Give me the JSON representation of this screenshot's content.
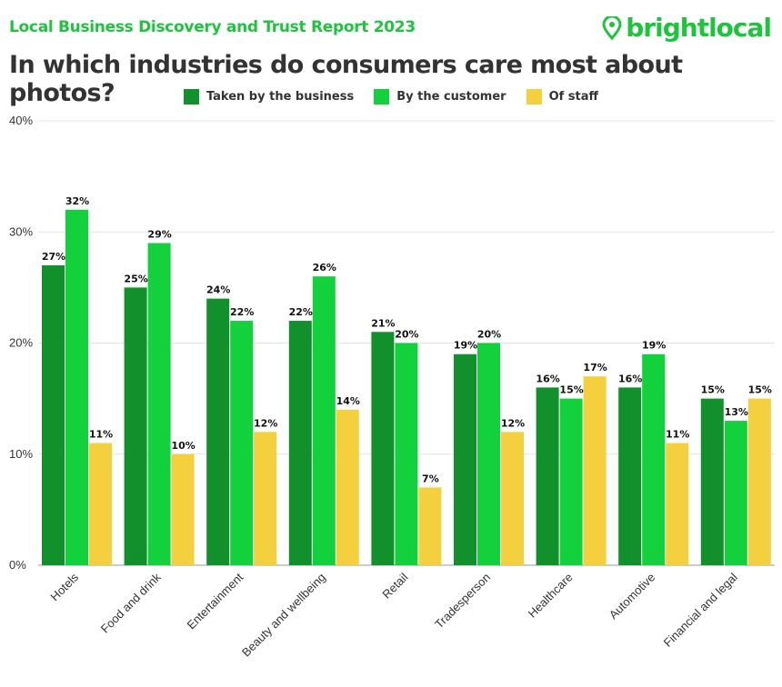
{
  "header": {
    "subtitle": "Local Business Discovery and Trust Report 2023",
    "brand": "brightlocal"
  },
  "chart_data": {
    "type": "bar",
    "title": "In which industries do consumers care most about photos?",
    "categories": [
      "Hotels",
      "Food and drink",
      "Entertainment",
      "Beauty and wellbeing",
      "Retail",
      "Tradesperson",
      "Healthcare",
      "Automotive",
      "Financial and legal"
    ],
    "series": [
      {
        "name": "Taken by the business",
        "color": "#12902b",
        "values": [
          27,
          25,
          24,
          22,
          21,
          19,
          16,
          16,
          15
        ]
      },
      {
        "name": "By the customer",
        "color": "#13d13c",
        "values": [
          32,
          29,
          22,
          26,
          20,
          20,
          15,
          19,
          13
        ]
      },
      {
        "name": "Of staff",
        "color": "#f4d03f",
        "values": [
          11,
          10,
          12,
          14,
          7,
          12,
          17,
          11,
          15
        ]
      }
    ],
    "ylim": [
      0,
      40
    ],
    "yticks": [
      "0%",
      "10%",
      "20%",
      "30%",
      "40%"
    ],
    "grid": true,
    "legend": "top-center",
    "value_suffix": "%"
  }
}
